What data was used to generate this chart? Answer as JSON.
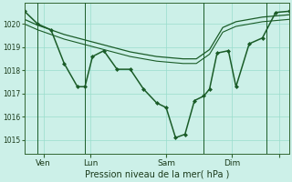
{
  "background_color": "#ccf0e8",
  "grid_color": "#99ddcc",
  "line_color": "#1a5c28",
  "xlabel": "Pression niveau de la mer( hPa )",
  "ylim": [
    1014.4,
    1020.9
  ],
  "yticks": [
    1015,
    1016,
    1017,
    1018,
    1019,
    1020
  ],
  "xlim": [
    0,
    14.0
  ],
  "xtick_positions": [
    1.0,
    3.5,
    7.5,
    11.0,
    13.5
  ],
  "xtick_labels": [
    "Ven",
    "Lun",
    "Sam",
    "Dim",
    ""
  ],
  "vlines_x": [
    0.7,
    3.2,
    9.5,
    12.8
  ],
  "series1": {
    "x": [
      0.0,
      0.7,
      1.4,
      2.1,
      2.8,
      3.5,
      4.2,
      4.9,
      5.6,
      6.3,
      7.0,
      7.7,
      8.4,
      9.1,
      9.8,
      10.5,
      11.2,
      11.9,
      12.6,
      13.3,
      14.0
    ],
    "y": [
      1020.2,
      1019.95,
      1019.75,
      1019.55,
      1019.4,
      1019.25,
      1019.1,
      1018.95,
      1018.8,
      1018.7,
      1018.6,
      1018.55,
      1018.5,
      1018.5,
      1018.9,
      1019.85,
      1020.1,
      1020.2,
      1020.3,
      1020.35,
      1020.4
    ]
  },
  "series2": {
    "x": [
      0.0,
      0.7,
      1.4,
      2.1,
      2.8,
      3.5,
      4.2,
      4.9,
      5.6,
      6.3,
      7.0,
      7.7,
      8.4,
      9.1,
      9.8,
      10.5,
      11.2,
      11.9,
      12.6,
      13.3,
      14.0
    ],
    "y": [
      1020.0,
      1019.75,
      1019.55,
      1019.35,
      1019.2,
      1019.05,
      1018.9,
      1018.75,
      1018.6,
      1018.5,
      1018.4,
      1018.35,
      1018.3,
      1018.3,
      1018.7,
      1019.65,
      1019.9,
      1020.0,
      1020.1,
      1020.15,
      1020.2
    ]
  },
  "series3_x": [
    0.0,
    0.7,
    1.4,
    2.1,
    2.8,
    3.2,
    3.6,
    4.2,
    4.9,
    5.6,
    6.3,
    7.0,
    7.5,
    8.0,
    8.5,
    9.0,
    9.5,
    9.8,
    10.2,
    10.8,
    11.2,
    11.9,
    12.6,
    13.3,
    14.0
  ],
  "series3_y": [
    1020.55,
    1020.0,
    1019.75,
    1018.3,
    1017.3,
    1017.3,
    1018.6,
    1018.85,
    1018.05,
    1018.05,
    1017.2,
    1016.6,
    1016.4,
    1015.1,
    1015.25,
    1016.7,
    1016.9,
    1017.2,
    1018.75,
    1018.85,
    1017.3,
    1019.15,
    1019.4,
    1020.5,
    1020.55
  ]
}
